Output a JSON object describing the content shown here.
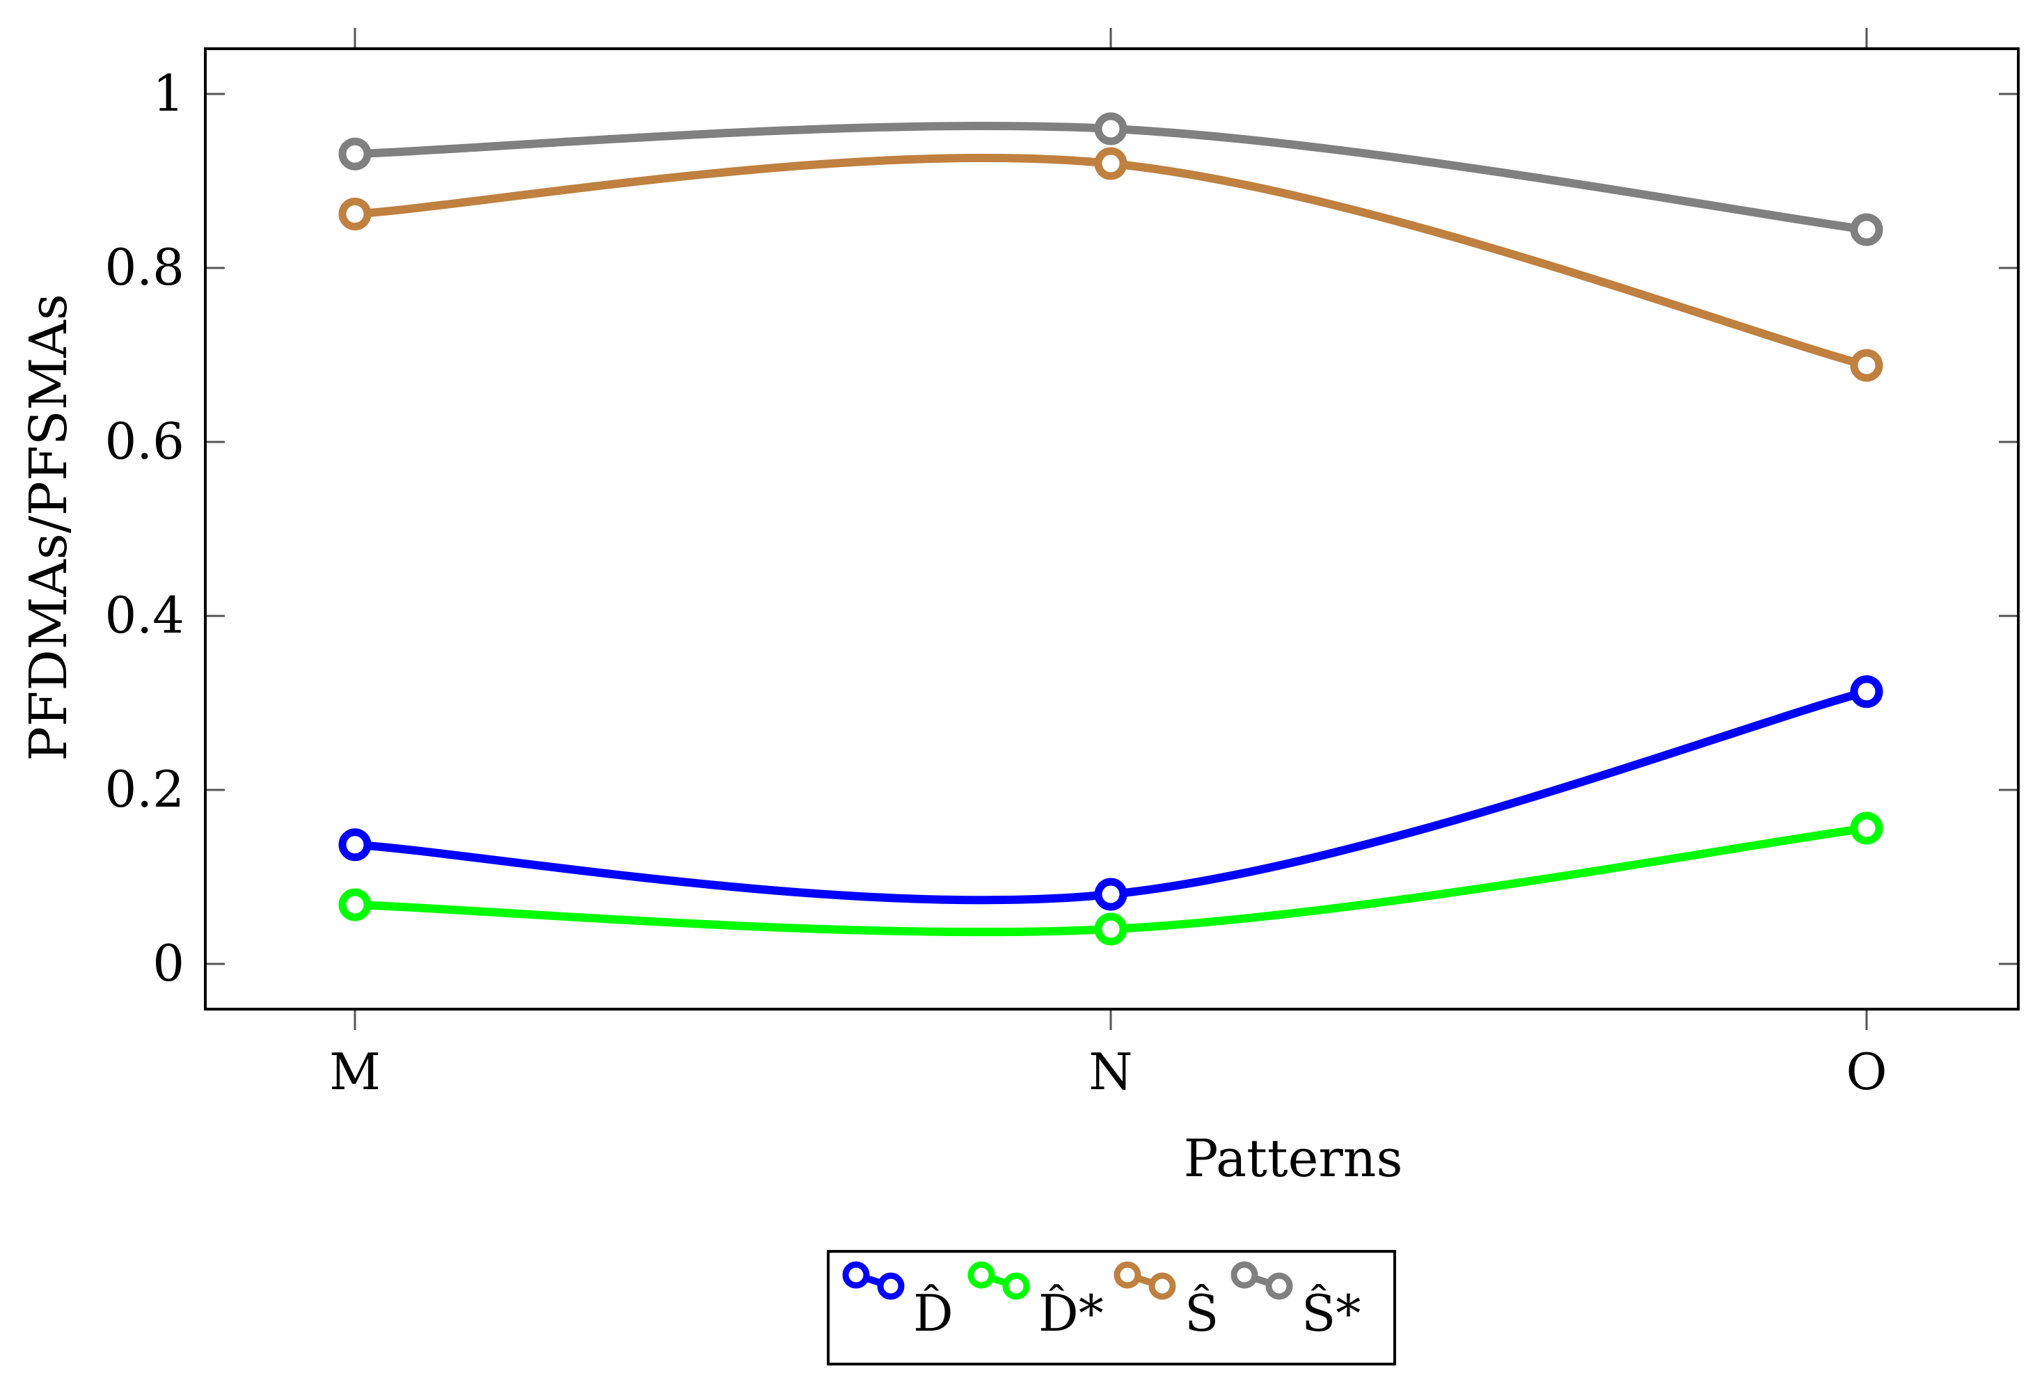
{
  "chart_data": {
    "type": "line",
    "title": "",
    "xlabel": "Patterns",
    "ylabel": "PFDMAs/PFSMAs",
    "categories": [
      "M",
      "N",
      "O"
    ],
    "yticks": [
      "0",
      "0.2",
      "0.4",
      "0.6",
      "0.8",
      "1"
    ],
    "ylim": [
      -0.05,
      1.05
    ],
    "grid": false,
    "legend_position": "bottom-center",
    "series": [
      {
        "name": "D̂",
        "values": [
          0.137,
          0.08,
          0.313
        ],
        "color": "#0000ff"
      },
      {
        "name": "D̂*",
        "values": [
          0.068,
          0.04,
          0.156
        ],
        "color": "#00ff00"
      },
      {
        "name": "Ŝ",
        "values": [
          0.862,
          0.92,
          0.688
        ],
        "color": "#bf8040"
      },
      {
        "name": "Ŝ*",
        "values": [
          0.931,
          0.96,
          0.844
        ],
        "color": "#808080"
      }
    ]
  }
}
